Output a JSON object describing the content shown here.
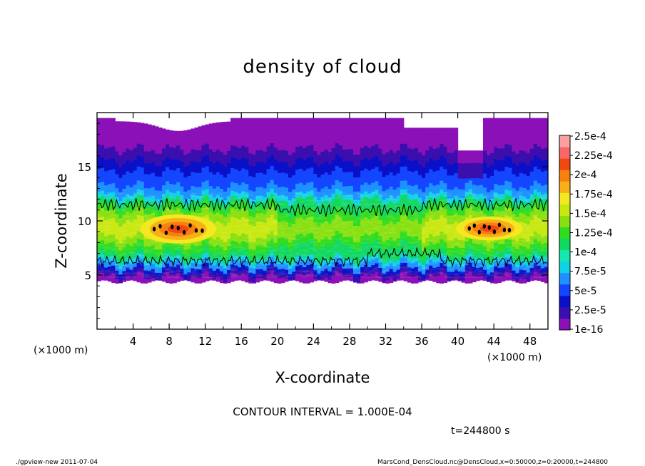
{
  "chart_data": {
    "type": "heatmap",
    "title": "density of cloud",
    "xlabel": "X-coordinate",
    "ylabel": "Z-coordinate",
    "x_unit": "(×1000 m)",
    "y_unit": "(×1000 m)",
    "xlim": [
      0,
      50
    ],
    "ylim": [
      0,
      20
    ],
    "xticks": [
      "4",
      "8",
      "12",
      "16",
      "20",
      "24",
      "28",
      "32",
      "36",
      "40",
      "44",
      "48"
    ],
    "yticks": [
      "5",
      "10",
      "15"
    ],
    "colorbar": {
      "levels": [
        "1e-16",
        "2.5e-5",
        "5e-5",
        "7.5e-5",
        "1e-4",
        "1.25e-4",
        "1.5e-4",
        "1.75e-4",
        "2e-4",
        "2.25e-4",
        "2.5e-4"
      ],
      "colors": [
        "#8b10b8",
        "#3a0fae",
        "#0a10c8",
        "#1446ff",
        "#1e90ff",
        "#10d2e6",
        "#14e8b0",
        "#10d860",
        "#30dc20",
        "#88e010",
        "#c8e810",
        "#f4e820",
        "#f8b018",
        "#f88010",
        "#f04810",
        "#f86868",
        "#fba0a0"
      ]
    },
    "cloud_profile": {
      "z_base": 4.4,
      "z_top_typical": 19.5,
      "dense_layer_z": [
        6,
        12
      ],
      "peak_regions": [
        {
          "x": [
            6,
            12
          ],
          "z": [
            8.5,
            10
          ],
          "value": 0.000225
        },
        {
          "x": [
            41,
            46
          ],
          "z": [
            8.8,
            9.8
          ],
          "value": 0.0002
        }
      ],
      "contour_level": 0.0001
    },
    "contour_interval": "CONTOUR INTERVAL = 1.000E-04",
    "time_label": "t=244800 s"
  },
  "footer": {
    "left": "./gpview-new  2011-07-04",
    "right": "MarsCond_DensCloud.nc@DensCloud,x=0:50000,z=0:20000,t=244800"
  }
}
